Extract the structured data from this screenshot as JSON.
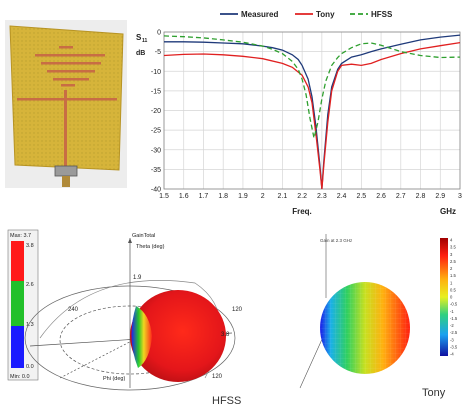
{
  "chart_data": [
    {
      "type": "line",
      "title": "",
      "ylabel_main": "S",
      "ylabel_sub": "11",
      "ylabel_unit": "dB",
      "xlabel": "Freq.",
      "xunit": "GHz",
      "xlim": [
        1.5,
        3.0
      ],
      "ylim": [
        -40,
        0
      ],
      "xticks": [
        "1.5",
        "1.6",
        "1.7",
        "1.8",
        "1.9",
        "2",
        "2.1",
        "2.2",
        "2.3",
        "2.4",
        "2.5",
        "2.6",
        "2.7",
        "2.8",
        "2.9",
        "3"
      ],
      "yticks": [
        "0",
        "-5",
        "-10",
        "-15",
        "-20",
        "-25",
        "-30",
        "-35",
        "-40"
      ],
      "grid": true,
      "legend_position": "top",
      "series": [
        {
          "name": "Measured",
          "color": "#1f3a7a",
          "dash": "",
          "x": [
            1.5,
            1.6,
            1.7,
            1.8,
            1.9,
            2.0,
            2.05,
            2.1,
            2.15,
            2.18,
            2.2,
            2.23,
            2.25,
            2.27,
            2.29,
            2.3,
            2.31,
            2.33,
            2.35,
            2.38,
            2.4,
            2.45,
            2.5,
            2.55,
            2.6,
            2.7,
            2.8,
            2.9,
            3.0
          ],
          "y": [
            -2.5,
            -2.5,
            -2.6,
            -2.8,
            -3.0,
            -3.6,
            -4.0,
            -4.6,
            -5.8,
            -7.0,
            -8.5,
            -12.0,
            -16.5,
            -24.0,
            -34.0,
            -40.0,
            -33.0,
            -21.0,
            -14.0,
            -9.5,
            -8.0,
            -6.4,
            -5.8,
            -5.0,
            -4.3,
            -3.1,
            -2.0,
            -1.3,
            -0.8
          ]
        },
        {
          "name": "Tony",
          "color": "#e02020",
          "dash": "",
          "x": [
            1.5,
            1.6,
            1.7,
            1.8,
            1.9,
            2.0,
            2.1,
            2.15,
            2.2,
            2.23,
            2.25,
            2.27,
            2.29,
            2.3,
            2.31,
            2.33,
            2.35,
            2.38,
            2.4,
            2.45,
            2.5,
            2.55,
            2.6,
            2.7,
            2.8,
            2.9,
            3.0
          ],
          "y": [
            -6.0,
            -5.7,
            -5.6,
            -5.8,
            -6.2,
            -6.8,
            -8.0,
            -9.0,
            -11.0,
            -14.0,
            -18.0,
            -26.0,
            -35.0,
            -40.0,
            -34.0,
            -23.0,
            -15.0,
            -10.0,
            -8.5,
            -8.2,
            -8.5,
            -8.0,
            -7.0,
            -5.5,
            -4.3,
            -3.5,
            -2.7
          ]
        },
        {
          "name": "HFSS",
          "color": "#2fa02f",
          "dash": "5,3",
          "x": [
            1.5,
            1.6,
            1.7,
            1.8,
            1.9,
            2.0,
            2.05,
            2.1,
            2.15,
            2.18,
            2.2,
            2.22,
            2.24,
            2.26,
            2.28,
            2.3,
            2.32,
            2.35,
            2.38,
            2.4,
            2.45,
            2.5,
            2.55,
            2.6,
            2.7,
            2.8,
            2.9,
            3.0
          ],
          "y": [
            -1.0,
            -1.2,
            -1.5,
            -2.0,
            -2.6,
            -3.6,
            -4.4,
            -5.5,
            -7.5,
            -9.5,
            -12.0,
            -16.0,
            -22.0,
            -27.0,
            -23.0,
            -17.0,
            -12.5,
            -8.5,
            -6.5,
            -5.5,
            -4.0,
            -3.0,
            -2.8,
            -3.4,
            -5.0,
            -6.0,
            -6.5,
            -6.4
          ]
        }
      ]
    }
  ],
  "radiation": {
    "hfss": {
      "caption": "HFSS",
      "legend_title": "Max: 3.7",
      "legend_ticks": [
        "3.8",
        "2.6",
        "1.3",
        "0.0"
      ],
      "legend_min": "Min: 0.0",
      "axis_labels": [
        "GainTotal",
        "Theta (deg)",
        "Phi (deg)"
      ],
      "angle_labels": [
        "240",
        "120",
        "120",
        "3.8",
        "1.9"
      ]
    },
    "tony": {
      "caption": "Tony",
      "plot_title": "Gain at 2.3 GHz",
      "colorbar_ticks": [
        "4",
        "3.5",
        "3",
        "2.5",
        "2",
        "1.5",
        "1",
        "0.5",
        "0",
        "-0.5",
        "-1",
        "-1.5",
        "-2",
        "-2.5",
        "-3",
        "-3.5",
        "-4"
      ]
    }
  },
  "photo": {
    "substrate_color": "#d7b63c",
    "trace_color": "#c46a3f"
  }
}
